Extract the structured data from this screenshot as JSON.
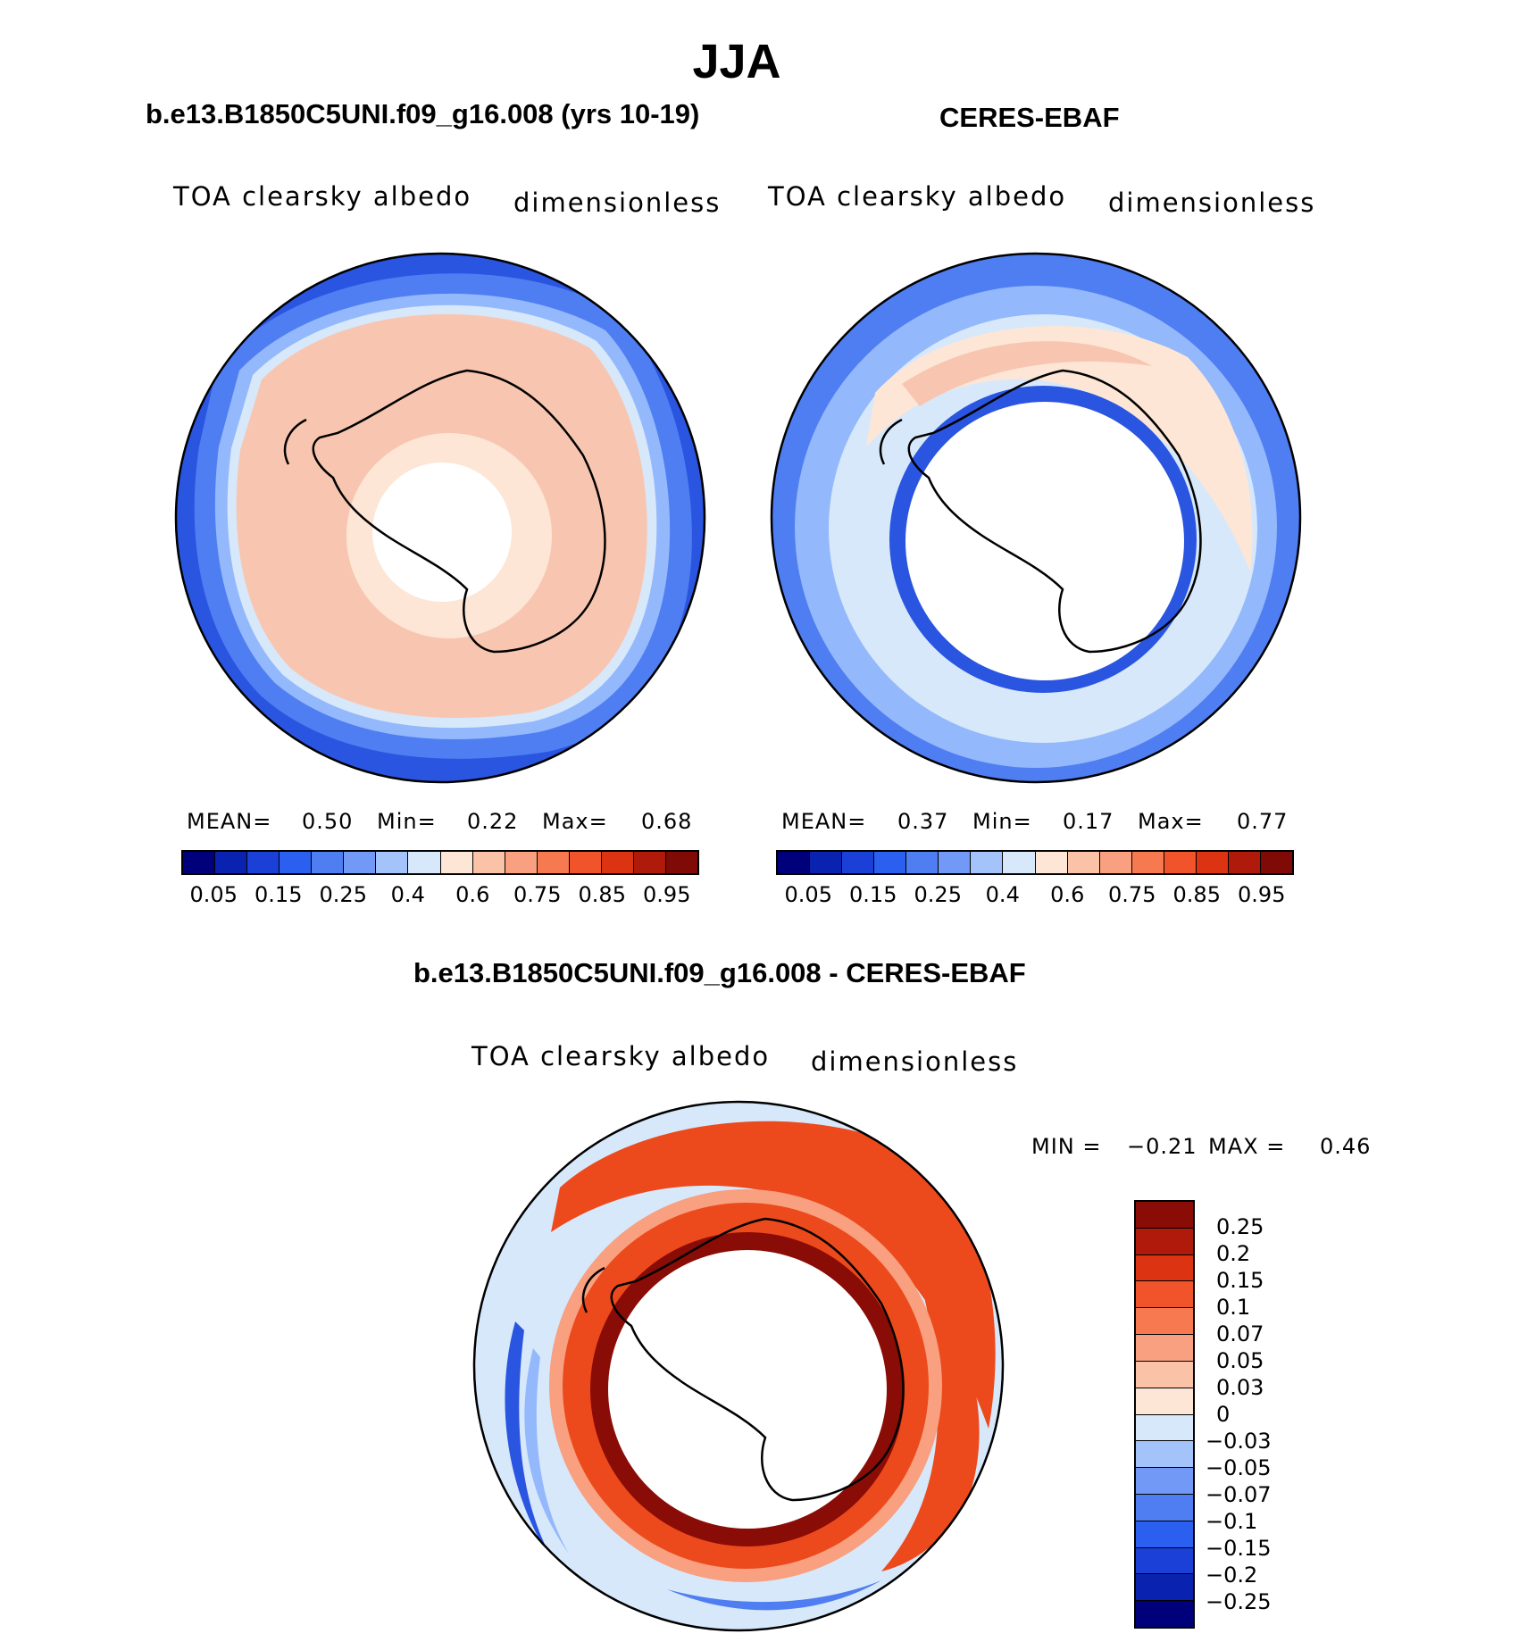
{
  "title": "JJA",
  "colors": {
    "deep_blue": "#2a55e0",
    "mid_blue": "#4f7ef2",
    "light_blue": "#93b8fb",
    "pale_blue": "#d7e8fb",
    "pale_peach": "#fde6d6",
    "peach": "#f8c6b0",
    "orange_red": "#ec4a1c",
    "dark_red": "#8a0c06"
  },
  "panel_left": {
    "title": "b.e13.B1850C5UNI.f09_g16.008 (yrs 10-19)",
    "variable": "TOA clearsky albedo",
    "units": "dimensionless",
    "mean_label": "MEAN=",
    "mean_value": "0.50",
    "min_label": "Min=",
    "min_value": "0.22",
    "max_label": "Max=",
    "max_value": "0.68"
  },
  "panel_right": {
    "title": "CERES-EBAF",
    "variable": "TOA clearsky albedo",
    "units": "dimensionless",
    "mean_label": "MEAN=",
    "mean_value": "0.37",
    "min_label": "Min=",
    "min_value": "0.17",
    "max_label": "Max=",
    "max_value": "0.77"
  },
  "panel_diff": {
    "title": "b.e13.B1850C5UNI.f09_g16.008 - CERES-EBAF",
    "variable": "TOA clearsky albedo",
    "units": "dimensionless",
    "min_label": "MIN =",
    "min_value": "−0.21",
    "max_label": "MAX =",
    "max_value": "0.46"
  },
  "colorbar_abs": {
    "colors": [
      "#00007a",
      "#0a22b0",
      "#1a40d8",
      "#2a5ff0",
      "#4f7ef2",
      "#7199f5",
      "#a3c3fa",
      "#d7e8fb",
      "#fde6d6",
      "#fac2a6",
      "#f8a07f",
      "#f6794f",
      "#f1532a",
      "#dc3412",
      "#b01a0a",
      "#800a06"
    ],
    "labels": [
      "0.05",
      "0.15",
      "0.25",
      "0.4",
      "0.6",
      "0.75",
      "0.85",
      "0.95"
    ]
  },
  "colorbar_diff": {
    "colors": [
      "#8a0c06",
      "#b01a0a",
      "#dc3412",
      "#f1532a",
      "#f6794f",
      "#f8a07f",
      "#fac2a6",
      "#fde6d6",
      "#d7e8fb",
      "#a3c3fa",
      "#7199f5",
      "#4f7ef2",
      "#2a5ff0",
      "#1a40d8",
      "#0a22b0",
      "#00007a"
    ],
    "labels": [
      "0.25",
      "0.2",
      "0.15",
      "0.1",
      "0.07",
      "0.05",
      "0.03",
      "0",
      "−0.03",
      "−0.05",
      "−0.07",
      "−0.1",
      "−0.15",
      "−0.2",
      "−0.25"
    ]
  }
}
